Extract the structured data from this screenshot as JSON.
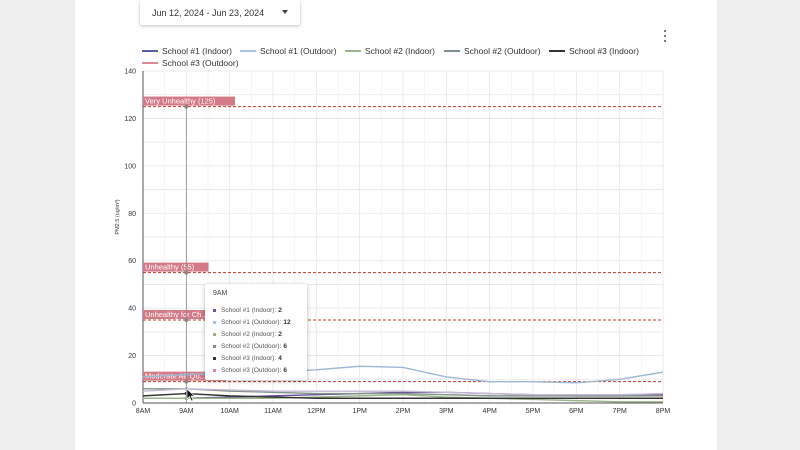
{
  "date_range": {
    "label": "Jun 12, 2024 - Jun 23, 2024"
  },
  "legend": [
    {
      "name": "School #1 (Indoor)",
      "color": "#5b5e9e"
    },
    {
      "name": "School #1 (Outdoor)",
      "color": "#a9c2dc"
    },
    {
      "name": "School #2 (Indoor)",
      "color": "#9bb58a"
    },
    {
      "name": "School #2 (Outdoor)",
      "color": "#7f9488"
    },
    {
      "name": "School #3 (Indoor)",
      "color": "#333333"
    },
    {
      "name": "School #3 (Outdoor)",
      "color": "#d98a96"
    }
  ],
  "chart_data": {
    "type": "line",
    "ylabel": "PM2.5 (ug/m³)",
    "ylim": [
      0,
      140
    ],
    "yticks": [
      "0",
      "20",
      "40",
      "60",
      "80",
      "100",
      "120",
      "140"
    ],
    "categories": [
      "8AM",
      "9AM",
      "10AM",
      "11AM",
      "12PM",
      "1PM",
      "2PM",
      "3PM",
      "4PM",
      "5PM",
      "6PM",
      "7PM",
      "8PM"
    ],
    "series": [
      {
        "name": "School #1 (Indoor)",
        "color": "#6a4fa0",
        "values": [
          2,
          2,
          2.5,
          3,
          3.5,
          4,
          4.5,
          4.5,
          4,
          3.5,
          3,
          3,
          3.5
        ]
      },
      {
        "name": "School #1 (Outdoor)",
        "color": "#9db7d6",
        "values": [
          11,
          12,
          12.5,
          13,
          14,
          15.5,
          15,
          11,
          9,
          9,
          8.5,
          10,
          13
        ]
      },
      {
        "name": "School #2 (Indoor)",
        "color": "#9bb58a",
        "values": [
          2,
          2,
          2,
          2,
          2.5,
          3,
          3.5,
          2.5,
          2,
          1.5,
          1,
          0.5,
          0.5
        ]
      },
      {
        "name": "School #2 (Outdoor)",
        "color": "#7f9488",
        "values": [
          6,
          6,
          5,
          4.5,
          4,
          4,
          4,
          3.5,
          3,
          3,
          3,
          3,
          3
        ]
      },
      {
        "name": "School #3 (Indoor)",
        "color": "#333333",
        "values": [
          3,
          4,
          3,
          2.5,
          2,
          2,
          2,
          2,
          2,
          2,
          2,
          2,
          2
        ]
      },
      {
        "name": "School #3 (Outdoor)",
        "color": "#c6b9d6",
        "values": [
          5,
          6,
          5.5,
          5,
          5,
          5,
          5,
          4.5,
          4,
          3.5,
          3.5,
          3.5,
          4
        ]
      }
    ],
    "thresholds": [
      {
        "label": "Very Unhealthy (125)",
        "value": 125
      },
      {
        "label": "Unhealthy (55)",
        "value": 55
      },
      {
        "label": "Unhealthy for Ch...",
        "value": 35
      },
      {
        "label": "Moderate Air Qu...",
        "value": 9
      }
    ],
    "threshold_color": "#c0392b",
    "grid": true
  },
  "tooltip": {
    "title": "9AM",
    "rows": [
      {
        "label": "School #1 (Indoor):",
        "value": "2",
        "color": "#5b5e9e"
      },
      {
        "label": "School #1 (Outdoor):",
        "value": "12",
        "color": "#a9c2dc"
      },
      {
        "label": "School #2 (Indoor):",
        "value": "2",
        "color": "#9bb58a"
      },
      {
        "label": "School #2 (Outdoor):",
        "value": "6",
        "color": "#7f9488"
      },
      {
        "label": "School #3 (Indoor):",
        "value": "4",
        "color": "#333333"
      },
      {
        "label": "School #3 (Outdoor):",
        "value": "6",
        "color": "#d98a96"
      }
    ]
  }
}
